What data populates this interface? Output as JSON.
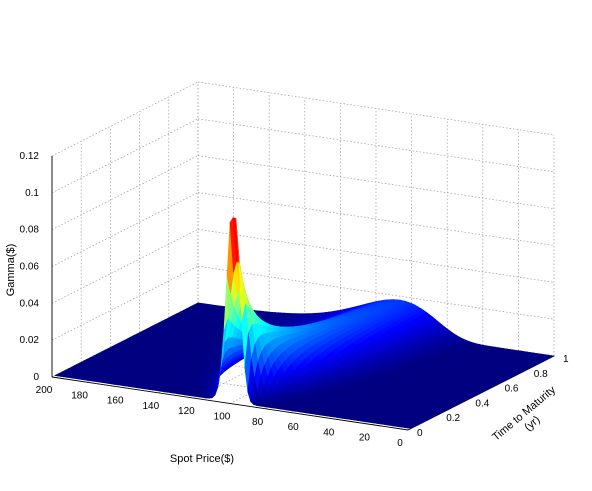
{
  "chart_data": {
    "type": "surface",
    "title": "",
    "xlabel": "Spot Price($)",
    "ylabel_lines": [
      "Time to Maturity",
      "(yr)"
    ],
    "zlabel": "Gamma($)",
    "xlim": [
      0,
      200
    ],
    "ylim": [
      0,
      1
    ],
    "zlim": [
      0,
      0.12
    ],
    "x_ticks": [
      "0",
      "20",
      "40",
      "60",
      "80",
      "100",
      "120",
      "140",
      "160",
      "180",
      "200"
    ],
    "y_ticks": [
      "0",
      "0.2",
      "0.4",
      "0.6",
      "0.8",
      "1"
    ],
    "z_ticks": [
      "0",
      "0.02",
      "0.04",
      "0.06",
      "0.08",
      "0.1",
      "0.12"
    ],
    "grid": true,
    "colormap": "jet",
    "peak": {
      "spot_price": 100,
      "time_to_maturity": 0.02,
      "gamma": 0.1
    }
  }
}
